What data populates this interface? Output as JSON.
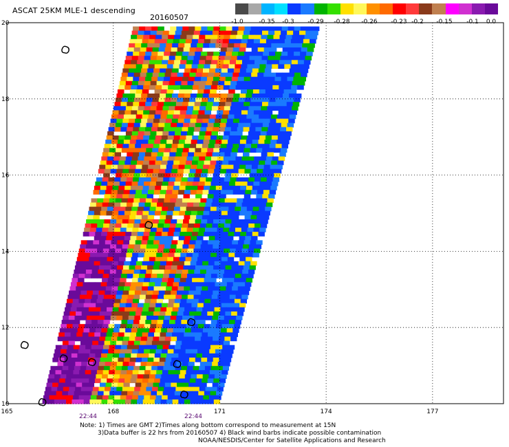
{
  "title": "ASCAT 25KM MLE-1 descending",
  "date": "20160507",
  "colorbar": {
    "colors": [
      "#4a4a4a",
      "#a8a8a8",
      "#00b4ff",
      "#00e0ff",
      "#0a3aff",
      "#1a7aff",
      "#00b400",
      "#34e000",
      "#ffe000",
      "#fff85a",
      "#ff9000",
      "#ff6a00",
      "#ff0000",
      "#ff3a3a",
      "#8a3a1a",
      "#c08050",
      "#ff00ff",
      "#d030d0",
      "#8a1ab0",
      "#6a0a9a"
    ],
    "labels": [
      "-1.0",
      "-0.35",
      "-0.3",
      "-0.29",
      "-0.28",
      "-0.26",
      "-0.23",
      "-0.2",
      "-0.15",
      "-0.1",
      "0.0"
    ]
  },
  "axes": {
    "y_ticks": [
      "20",
      "18",
      "16",
      "14",
      "12",
      "10"
    ],
    "x_ticks": [
      "165",
      "168",
      "171",
      "174",
      "177"
    ]
  },
  "time_labels": [
    "22:44",
    "22:44"
  ],
  "notes": {
    "line1": "Note: 1) Times are GMT 2)Times along bottom correspond to measurement at 15N",
    "line2": "3)Data buffer is 22 hrs from 20160507 4) Black wind barbs indicate possible contamination",
    "line3": "NOAA/NESDIS/Center for Satellite Applications and Research"
  },
  "map_data": {
    "lon_range": [
      165,
      179
    ],
    "lat_range": [
      10,
      20
    ],
    "swath": {
      "lat_bottom": 10,
      "lat_top": 19.9,
      "west_lon_bottom": 166.0,
      "west_lon_top": 168.55,
      "east_lon_bottom": 171.0,
      "east_lon_top": 173.8
    },
    "islands": [
      {
        "lon": 166.65,
        "lat": 19.3
      },
      {
        "lon": 165.5,
        "lat": 11.55
      },
      {
        "lon": 166.6,
        "lat": 11.2
      },
      {
        "lon": 167.4,
        "lat": 11.1
      },
      {
        "lon": 169.0,
        "lat": 14.7
      },
      {
        "lon": 170.2,
        "lat": 12.15
      },
      {
        "lon": 169.8,
        "lat": 11.05
      },
      {
        "lon": 170.0,
        "lat": 10.25
      },
      {
        "lon": 166.0,
        "lat": 10.05
      }
    ]
  }
}
